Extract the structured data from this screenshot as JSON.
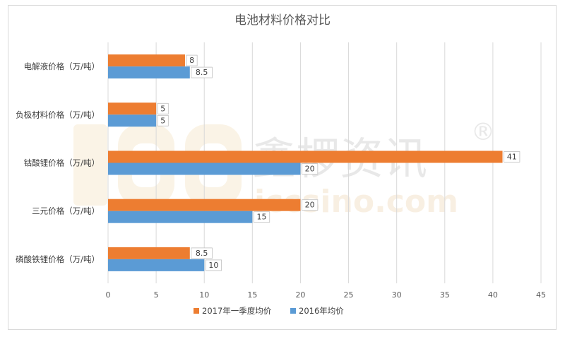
{
  "chart_data": {
    "type": "bar",
    "orientation": "horizontal",
    "title": "电池材料价格对比",
    "categories": [
      "电解液价格（万/吨）",
      "负极材料价格（万/吨）",
      "钴酸锂价格（万/吨）",
      "三元价格（万/吨）",
      "磷酸铁锂价格（万/吨）"
    ],
    "series": [
      {
        "name": "2017年一季度均价",
        "values": [
          8,
          5,
          41,
          20,
          8.5
        ],
        "color": "#ed7d31"
      },
      {
        "name": "2016年均价",
        "values": [
          8.5,
          5,
          20,
          15,
          10
        ],
        "color": "#5b9bd5"
      }
    ],
    "xlim": [
      0,
      45
    ],
    "xticks": [
      0,
      5,
      10,
      15,
      20,
      25,
      30,
      35,
      40,
      45
    ],
    "grid": true,
    "legend_position": "bottom",
    "data_labels": true
  },
  "watermark": {
    "text": "鑫椤资讯",
    "registered": "®",
    "site": "iccsino.com"
  }
}
